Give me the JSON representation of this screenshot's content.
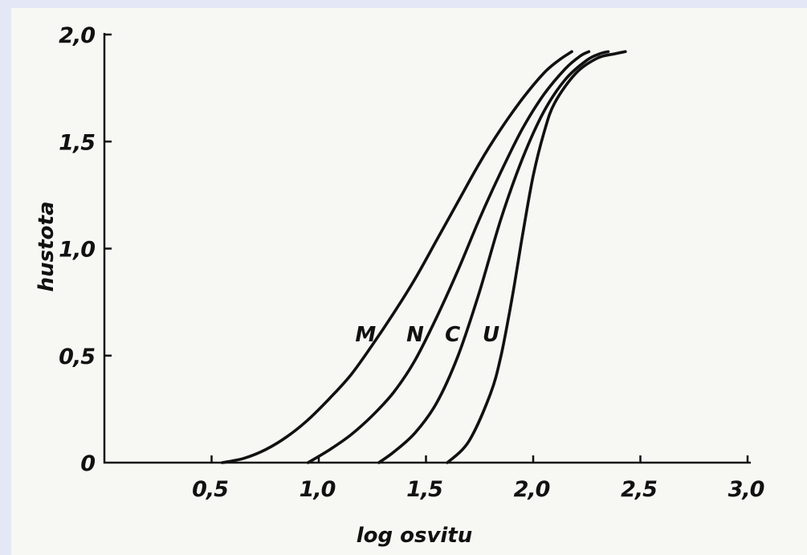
{
  "chart_data": {
    "type": "line",
    "title": "",
    "xlabel": "log osvitu",
    "ylabel": "hustota",
    "xlim": [
      0,
      3.0
    ],
    "ylim": [
      0,
      2.0
    ],
    "x_ticks": [
      0.5,
      1.0,
      1.5,
      2.0,
      2.5,
      3.0
    ],
    "x_tick_labels": [
      "0,5",
      "1,0",
      "1,5",
      "2,0",
      "2,5",
      "3,0"
    ],
    "y_ticks": [
      0,
      0.5,
      1.0,
      1.5,
      2.0
    ],
    "y_tick_labels": [
      "0",
      "0,5",
      "1,0",
      "1,5",
      "2,0"
    ],
    "grid": false,
    "series": [
      {
        "name": "M",
        "x": [
          0.55,
          0.65,
          0.75,
          0.85,
          0.95,
          1.05,
          1.15,
          1.25,
          1.35,
          1.45,
          1.55,
          1.65,
          1.75,
          1.85,
          1.95,
          2.05,
          2.12,
          2.18
        ],
        "y": [
          0.0,
          0.02,
          0.06,
          0.12,
          0.2,
          0.3,
          0.41,
          0.55,
          0.7,
          0.86,
          1.04,
          1.22,
          1.4,
          1.56,
          1.7,
          1.82,
          1.88,
          1.92
        ]
      },
      {
        "name": "N",
        "x": [
          0.95,
          1.05,
          1.15,
          1.25,
          1.35,
          1.45,
          1.55,
          1.65,
          1.75,
          1.85,
          1.95,
          2.05,
          2.15,
          2.22,
          2.26
        ],
        "y": [
          0.0,
          0.06,
          0.13,
          0.22,
          0.33,
          0.48,
          0.68,
          0.9,
          1.14,
          1.36,
          1.56,
          1.72,
          1.84,
          1.9,
          1.92
        ]
      },
      {
        "name": "C",
        "x": [
          1.28,
          1.35,
          1.45,
          1.55,
          1.65,
          1.75,
          1.85,
          1.95,
          2.05,
          2.15,
          2.25,
          2.31,
          2.35
        ],
        "y": [
          0.0,
          0.05,
          0.14,
          0.28,
          0.5,
          0.8,
          1.14,
          1.42,
          1.64,
          1.79,
          1.88,
          1.91,
          1.92
        ]
      },
      {
        "name": "U",
        "x": [
          1.6,
          1.7,
          1.8,
          1.85,
          1.9,
          1.95,
          2.0,
          2.05,
          2.1,
          2.2,
          2.3,
          2.38,
          2.43
        ],
        "y": [
          0.0,
          0.1,
          0.32,
          0.5,
          0.76,
          1.06,
          1.34,
          1.54,
          1.68,
          1.82,
          1.89,
          1.91,
          1.92
        ]
      }
    ]
  }
}
